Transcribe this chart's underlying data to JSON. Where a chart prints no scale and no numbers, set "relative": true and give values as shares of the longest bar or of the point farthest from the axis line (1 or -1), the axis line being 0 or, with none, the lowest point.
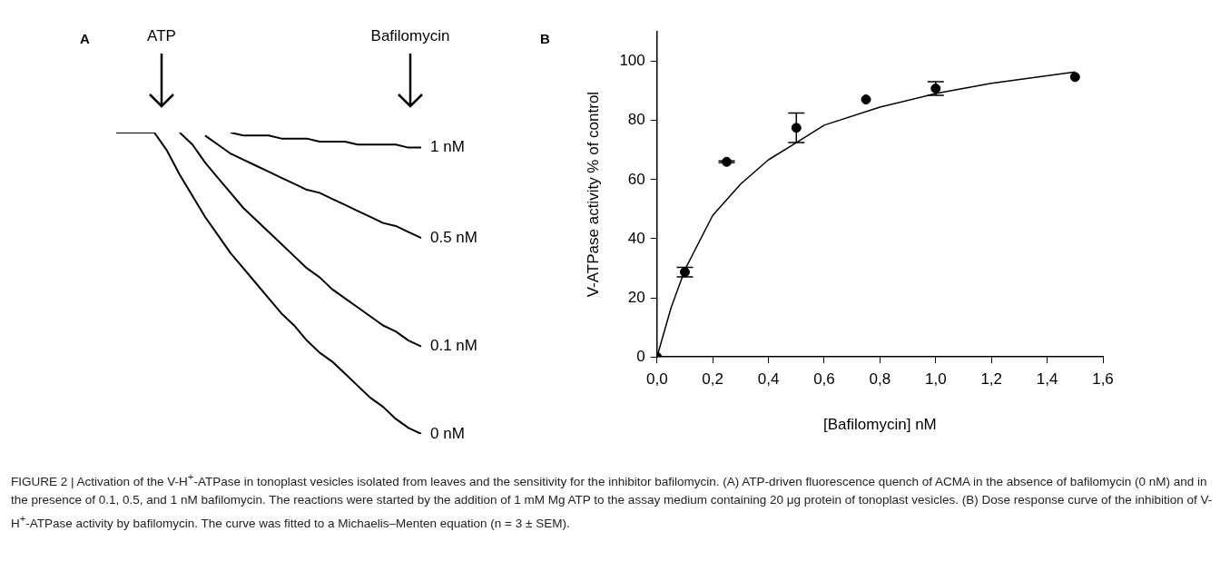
{
  "chart_data": [
    {
      "type": "line",
      "title": "A",
      "relative": true,
      "legend": false,
      "annotations": [
        "ATP",
        "Bafilomycin"
      ],
      "categories": [
        null,
        null,
        null,
        null,
        null,
        null,
        null,
        null,
        null,
        null,
        null,
        null,
        null,
        null,
        null,
        null,
        null,
        null,
        null,
        null,
        null,
        null,
        null,
        null,
        null
      ],
      "series": [
        {
          "name": "0 nM",
          "color": "#000000",
          "values": [
            1,
            1,
            1,
            1,
            0.94,
            0.86,
            0.79,
            0.72,
            0.66,
            0.6,
            0.55,
            0.5,
            0.45,
            0.4,
            0.36,
            0.31,
            0.27,
            0.24,
            0.2,
            0.16,
            0.12,
            0.09,
            0.05,
            0.02,
            0
          ]
        },
        {
          "name": "0.1 nM",
          "color": "#000000",
          "values": [
            null,
            null,
            null,
            null,
            null,
            1,
            0.96,
            0.9,
            0.85,
            0.8,
            0.75,
            0.71,
            0.67,
            0.63,
            0.59,
            0.55,
            0.52,
            0.48,
            0.45,
            0.42,
            0.39,
            0.36,
            0.34,
            0.31,
            0.29
          ]
        },
        {
          "name": "0.5 nM",
          "color": "#000000",
          "values": [
            null,
            null,
            null,
            null,
            null,
            null,
            null,
            0.99,
            0.96,
            0.93,
            0.91,
            0.89,
            0.87,
            0.85,
            0.83,
            0.81,
            0.8,
            0.78,
            0.76,
            0.74,
            0.72,
            0.7,
            0.69,
            0.67,
            0.65
          ]
        },
        {
          "name": "1 nM",
          "color": "#000000",
          "values": [
            null,
            null,
            null,
            null,
            null,
            null,
            null,
            null,
            null,
            1,
            0.99,
            0.99,
            0.99,
            0.98,
            0.98,
            0.98,
            0.97,
            0.97,
            0.97,
            0.96,
            0.96,
            0.96,
            0.96,
            0.95,
            0.95
          ]
        }
      ]
    },
    {
      "type": "scatter",
      "title": "B",
      "xlabel": "[Bafilomycin] nM",
      "ylabel": "V-ATPase activity % of control",
      "legend": false,
      "grid": false,
      "xlim": [
        0,
        1.6
      ],
      "xticks": [
        {
          "value": 0,
          "label": "0,0"
        },
        {
          "value": 0.2,
          "label": "0,2"
        },
        {
          "value": 0.4,
          "label": "0,4"
        },
        {
          "value": 0.6,
          "label": "0,6"
        },
        {
          "value": 0.8,
          "label": "0,8"
        },
        {
          "value": 1,
          "label": "1,0"
        },
        {
          "value": 1.2,
          "label": "1,2"
        },
        {
          "value": 1.4,
          "label": "1,4"
        },
        {
          "value": 1.6,
          "label": "1,6"
        }
      ],
      "ylim": [
        0,
        110
      ],
      "yticks": [
        0,
        20,
        40,
        60,
        80,
        100
      ],
      "series": [
        {
          "color": "#000000",
          "marker": "circle",
          "x": [
            0,
            0.1,
            0.25,
            0.5,
            0.75,
            1,
            1.5
          ],
          "values": [
            0,
            28.7,
            66,
            77.5,
            87.1,
            90.8,
            94.7
          ],
          "errors": [
            null,
            1.6,
            0.3,
            5,
            null,
            2.3,
            null
          ]
        },
        {
          "type": "line",
          "marker": "none",
          "color": "#000000",
          "x": [
            0,
            0.05,
            0.1,
            0.2,
            0.3,
            0.4,
            0.5,
            0.6,
            0.8,
            1,
            1.2,
            1.5
          ],
          "values": [
            0,
            16.5,
            29.5,
            47.9,
            58.5,
            66.7,
            72.5,
            78.4,
            84.5,
            89.1,
            92.6,
            96.4
          ]
        }
      ],
      "annotations": [
        "FIGURE 2 | Activation of the V-H$^{+}$-ATPase in tonoplast vesicles isolated from leaves and the sensitivity for the inhibitor bafilomycin. (A) ATP-driven fluorescence quench of ACMA in the absence of bafilomycin (0 nM) and in the presence of 0.1, 0.5, and 1 nM bafilomycin. The reactions were started by the addition of 1 mM Mg ATP to the assay medium containing 20 μg protein of tonoplast vesicles. (B) Dose response curve of the inhibition of V-H$^{+}$-ATPase activity by bafilomycin. The curve was fitted to a Michaelis–Menten equation (n = 3 ± SEM)."
      ]
    }
  ]
}
